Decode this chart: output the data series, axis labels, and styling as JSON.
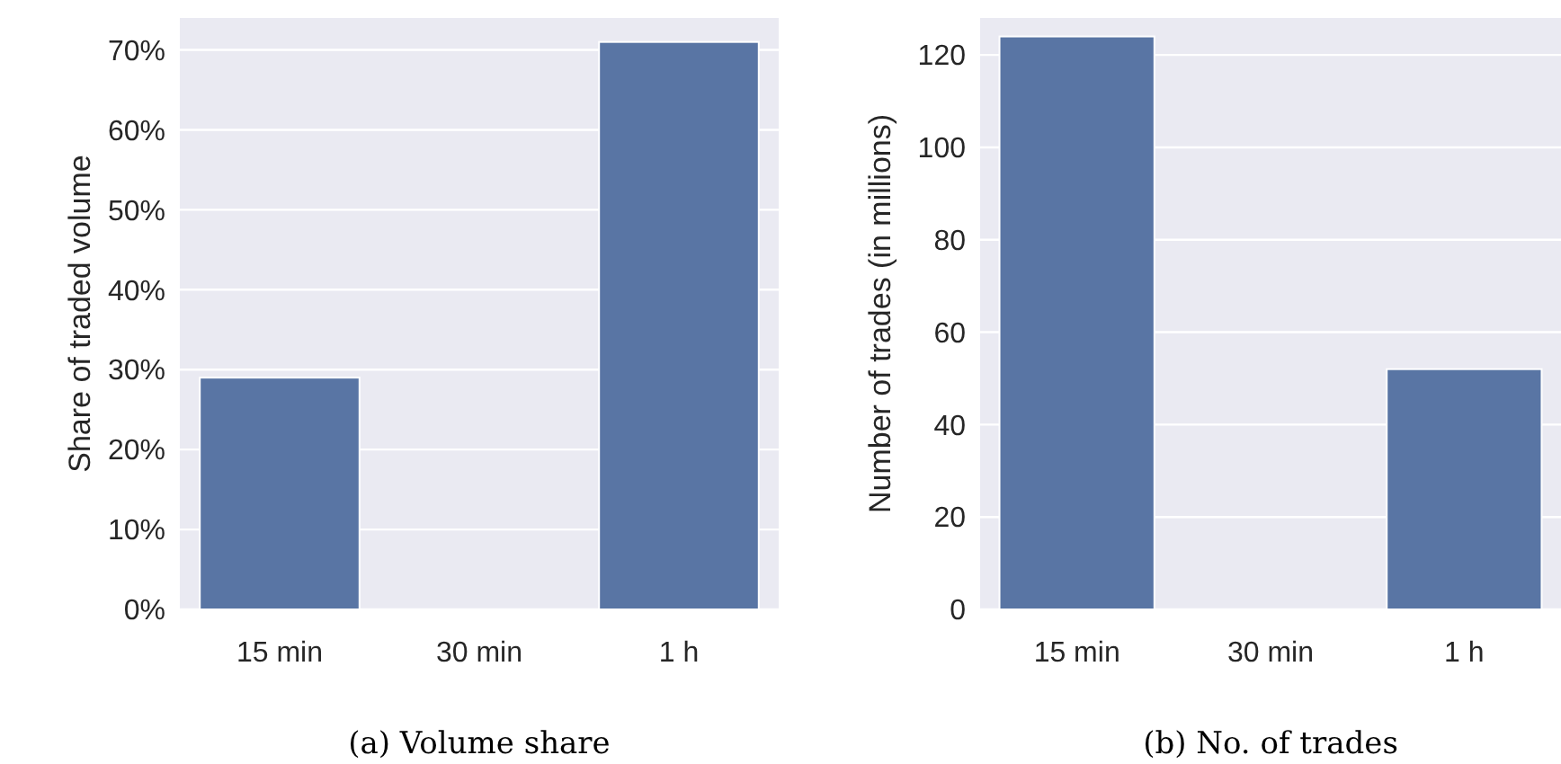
{
  "chart_data": [
    {
      "type": "bar",
      "title": "(a) Volume share",
      "ylabel": "Share of traded volume",
      "categories": [
        "15 min",
        "30 min",
        "1 h"
      ],
      "values": [
        29,
        0,
        71
      ],
      "color": "#5975a4",
      "ylim": [
        0,
        74
      ],
      "yticks": [
        {
          "value": 0,
          "label": "0%"
        },
        {
          "value": 10,
          "label": "10%"
        },
        {
          "value": 20,
          "label": "20%"
        },
        {
          "value": 30,
          "label": "30%"
        },
        {
          "value": 40,
          "label": "40%"
        },
        {
          "value": 50,
          "label": "50%"
        },
        {
          "value": 60,
          "label": "60%"
        },
        {
          "value": 70,
          "label": "70%"
        }
      ],
      "grid": "y"
    },
    {
      "type": "bar",
      "title": "(b) No. of trades",
      "ylabel": "Number of trades (in millions)",
      "categories": [
        "15 min",
        "30 min",
        "1 h"
      ],
      "values": [
        124,
        0,
        52
      ],
      "color": "#5975a4",
      "ylim": [
        0,
        128
      ],
      "yticks": [
        0,
        20,
        40,
        60,
        80,
        100,
        120
      ],
      "grid": "y"
    }
  ]
}
